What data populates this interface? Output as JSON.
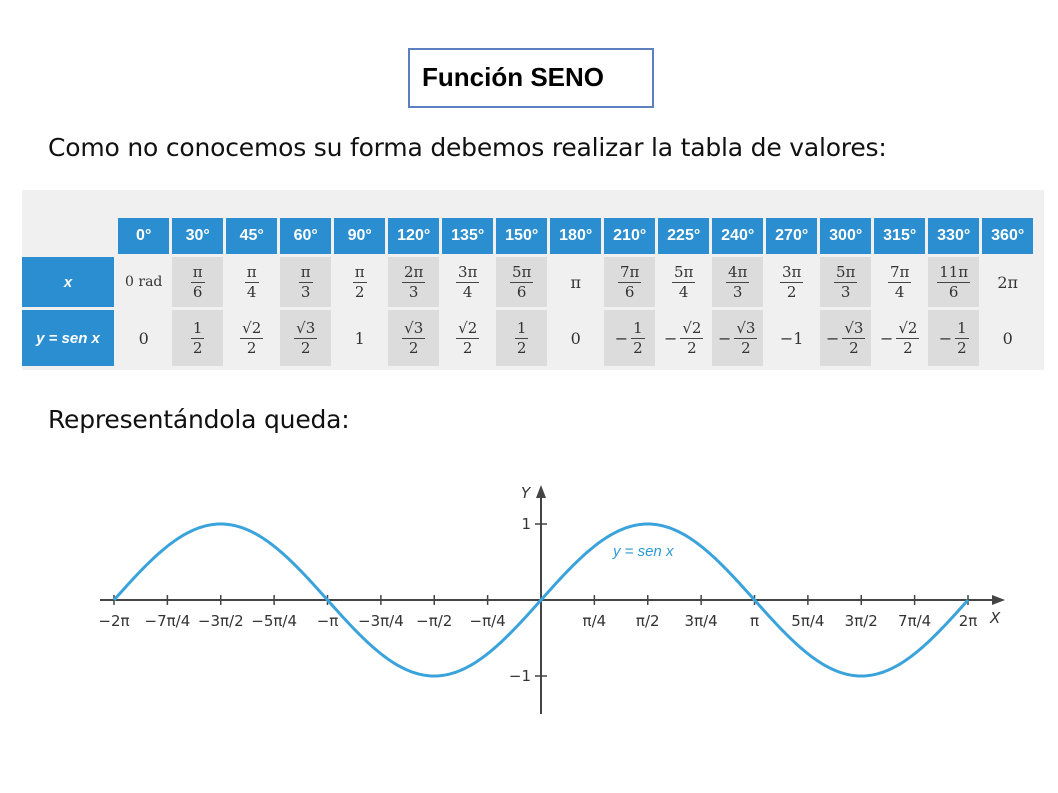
{
  "title": "Función SENO",
  "intro_text": "Como no conocemos su forma debemos realizar la tabla de valores:",
  "result_text": "Representándola queda:",
  "table": {
    "row_labels": {
      "x": "x",
      "y": "y = sen x"
    },
    "columns": [
      {
        "deg": "0°",
        "x": {
          "t": "text",
          "v": "0 rad"
        },
        "y": {
          "t": "text",
          "v": "0"
        }
      },
      {
        "deg": "30°",
        "x": {
          "t": "frac",
          "n": "π",
          "d": "6"
        },
        "y": {
          "t": "frac",
          "n": "1",
          "d": "2"
        }
      },
      {
        "deg": "45°",
        "x": {
          "t": "frac",
          "n": "π",
          "d": "4"
        },
        "y": {
          "t": "frac",
          "n": "√2",
          "d": "2"
        }
      },
      {
        "deg": "60°",
        "x": {
          "t": "frac",
          "n": "π",
          "d": "3"
        },
        "y": {
          "t": "frac",
          "n": "√3",
          "d": "2"
        }
      },
      {
        "deg": "90°",
        "x": {
          "t": "frac",
          "n": "π",
          "d": "2"
        },
        "y": {
          "t": "text",
          "v": "1"
        }
      },
      {
        "deg": "120°",
        "x": {
          "t": "frac",
          "n": "2π",
          "d": "3"
        },
        "y": {
          "t": "frac",
          "n": "√3",
          "d": "2"
        }
      },
      {
        "deg": "135°",
        "x": {
          "t": "frac",
          "n": "3π",
          "d": "4"
        },
        "y": {
          "t": "frac",
          "n": "√2",
          "d": "2"
        }
      },
      {
        "deg": "150°",
        "x": {
          "t": "frac",
          "n": "5π",
          "d": "6"
        },
        "y": {
          "t": "frac",
          "n": "1",
          "d": "2"
        }
      },
      {
        "deg": "180°",
        "x": {
          "t": "text",
          "v": "π"
        },
        "y": {
          "t": "text",
          "v": "0"
        }
      },
      {
        "deg": "210°",
        "x": {
          "t": "frac",
          "n": "7π",
          "d": "6"
        },
        "y": {
          "t": "frac",
          "s": "−",
          "n": "1",
          "d": "2"
        }
      },
      {
        "deg": "225°",
        "x": {
          "t": "frac",
          "n": "5π",
          "d": "4"
        },
        "y": {
          "t": "frac",
          "s": "−",
          "n": "√2",
          "d": "2"
        }
      },
      {
        "deg": "240°",
        "x": {
          "t": "frac",
          "n": "4π",
          "d": "3"
        },
        "y": {
          "t": "frac",
          "s": "−",
          "n": "√3",
          "d": "2"
        }
      },
      {
        "deg": "270°",
        "x": {
          "t": "frac",
          "n": "3π",
          "d": "2"
        },
        "y": {
          "t": "text",
          "v": "−1"
        }
      },
      {
        "deg": "300°",
        "x": {
          "t": "frac",
          "n": "5π",
          "d": "3"
        },
        "y": {
          "t": "frac",
          "s": "−",
          "n": "√3",
          "d": "2"
        }
      },
      {
        "deg": "315°",
        "x": {
          "t": "frac",
          "n": "7π",
          "d": "4"
        },
        "y": {
          "t": "frac",
          "s": "−",
          "n": "√2",
          "d": "2"
        }
      },
      {
        "deg": "330°",
        "x": {
          "t": "frac",
          "n": "11π",
          "d": "6"
        },
        "y": {
          "t": "frac",
          "s": "−",
          "n": "1",
          "d": "2"
        }
      },
      {
        "deg": "360°",
        "x": {
          "t": "text",
          "v": "2π"
        },
        "y": {
          "t": "text",
          "v": "0"
        }
      }
    ]
  },
  "chart_data": {
    "type": "line",
    "function": "sin",
    "x_range": [
      -6.2832,
      6.2832
    ],
    "ylim": [
      -1,
      1
    ],
    "xlabel": "X",
    "ylabel": "Y",
    "x_ticks": [
      {
        "value": -6.2832,
        "label": "−2π"
      },
      {
        "value": -5.4978,
        "label": "−7π/4"
      },
      {
        "value": -4.7124,
        "label": "−3π/2"
      },
      {
        "value": -3.927,
        "label": "−5π/4"
      },
      {
        "value": -3.1416,
        "label": "−π"
      },
      {
        "value": -2.3562,
        "label": "−3π/4"
      },
      {
        "value": -1.5708,
        "label": "−π/2"
      },
      {
        "value": -0.7854,
        "label": "−π/4"
      },
      {
        "value": 0.7854,
        "label": "π/4"
      },
      {
        "value": 1.5708,
        "label": "π/2"
      },
      {
        "value": 2.3562,
        "label": "3π/4"
      },
      {
        "value": 3.1416,
        "label": "π"
      },
      {
        "value": 3.927,
        "label": "5π/4"
      },
      {
        "value": 4.7124,
        "label": "3π/2"
      },
      {
        "value": 5.4978,
        "label": "7π/4"
      },
      {
        "value": 6.2832,
        "label": "2π"
      }
    ],
    "y_ticks": [
      {
        "value": 1,
        "label": "1"
      },
      {
        "value": -1,
        "label": "−1"
      }
    ],
    "series": [
      {
        "name": "y = sen x",
        "color": "#3aa3dc"
      }
    ],
    "axis_color": "#444444"
  }
}
